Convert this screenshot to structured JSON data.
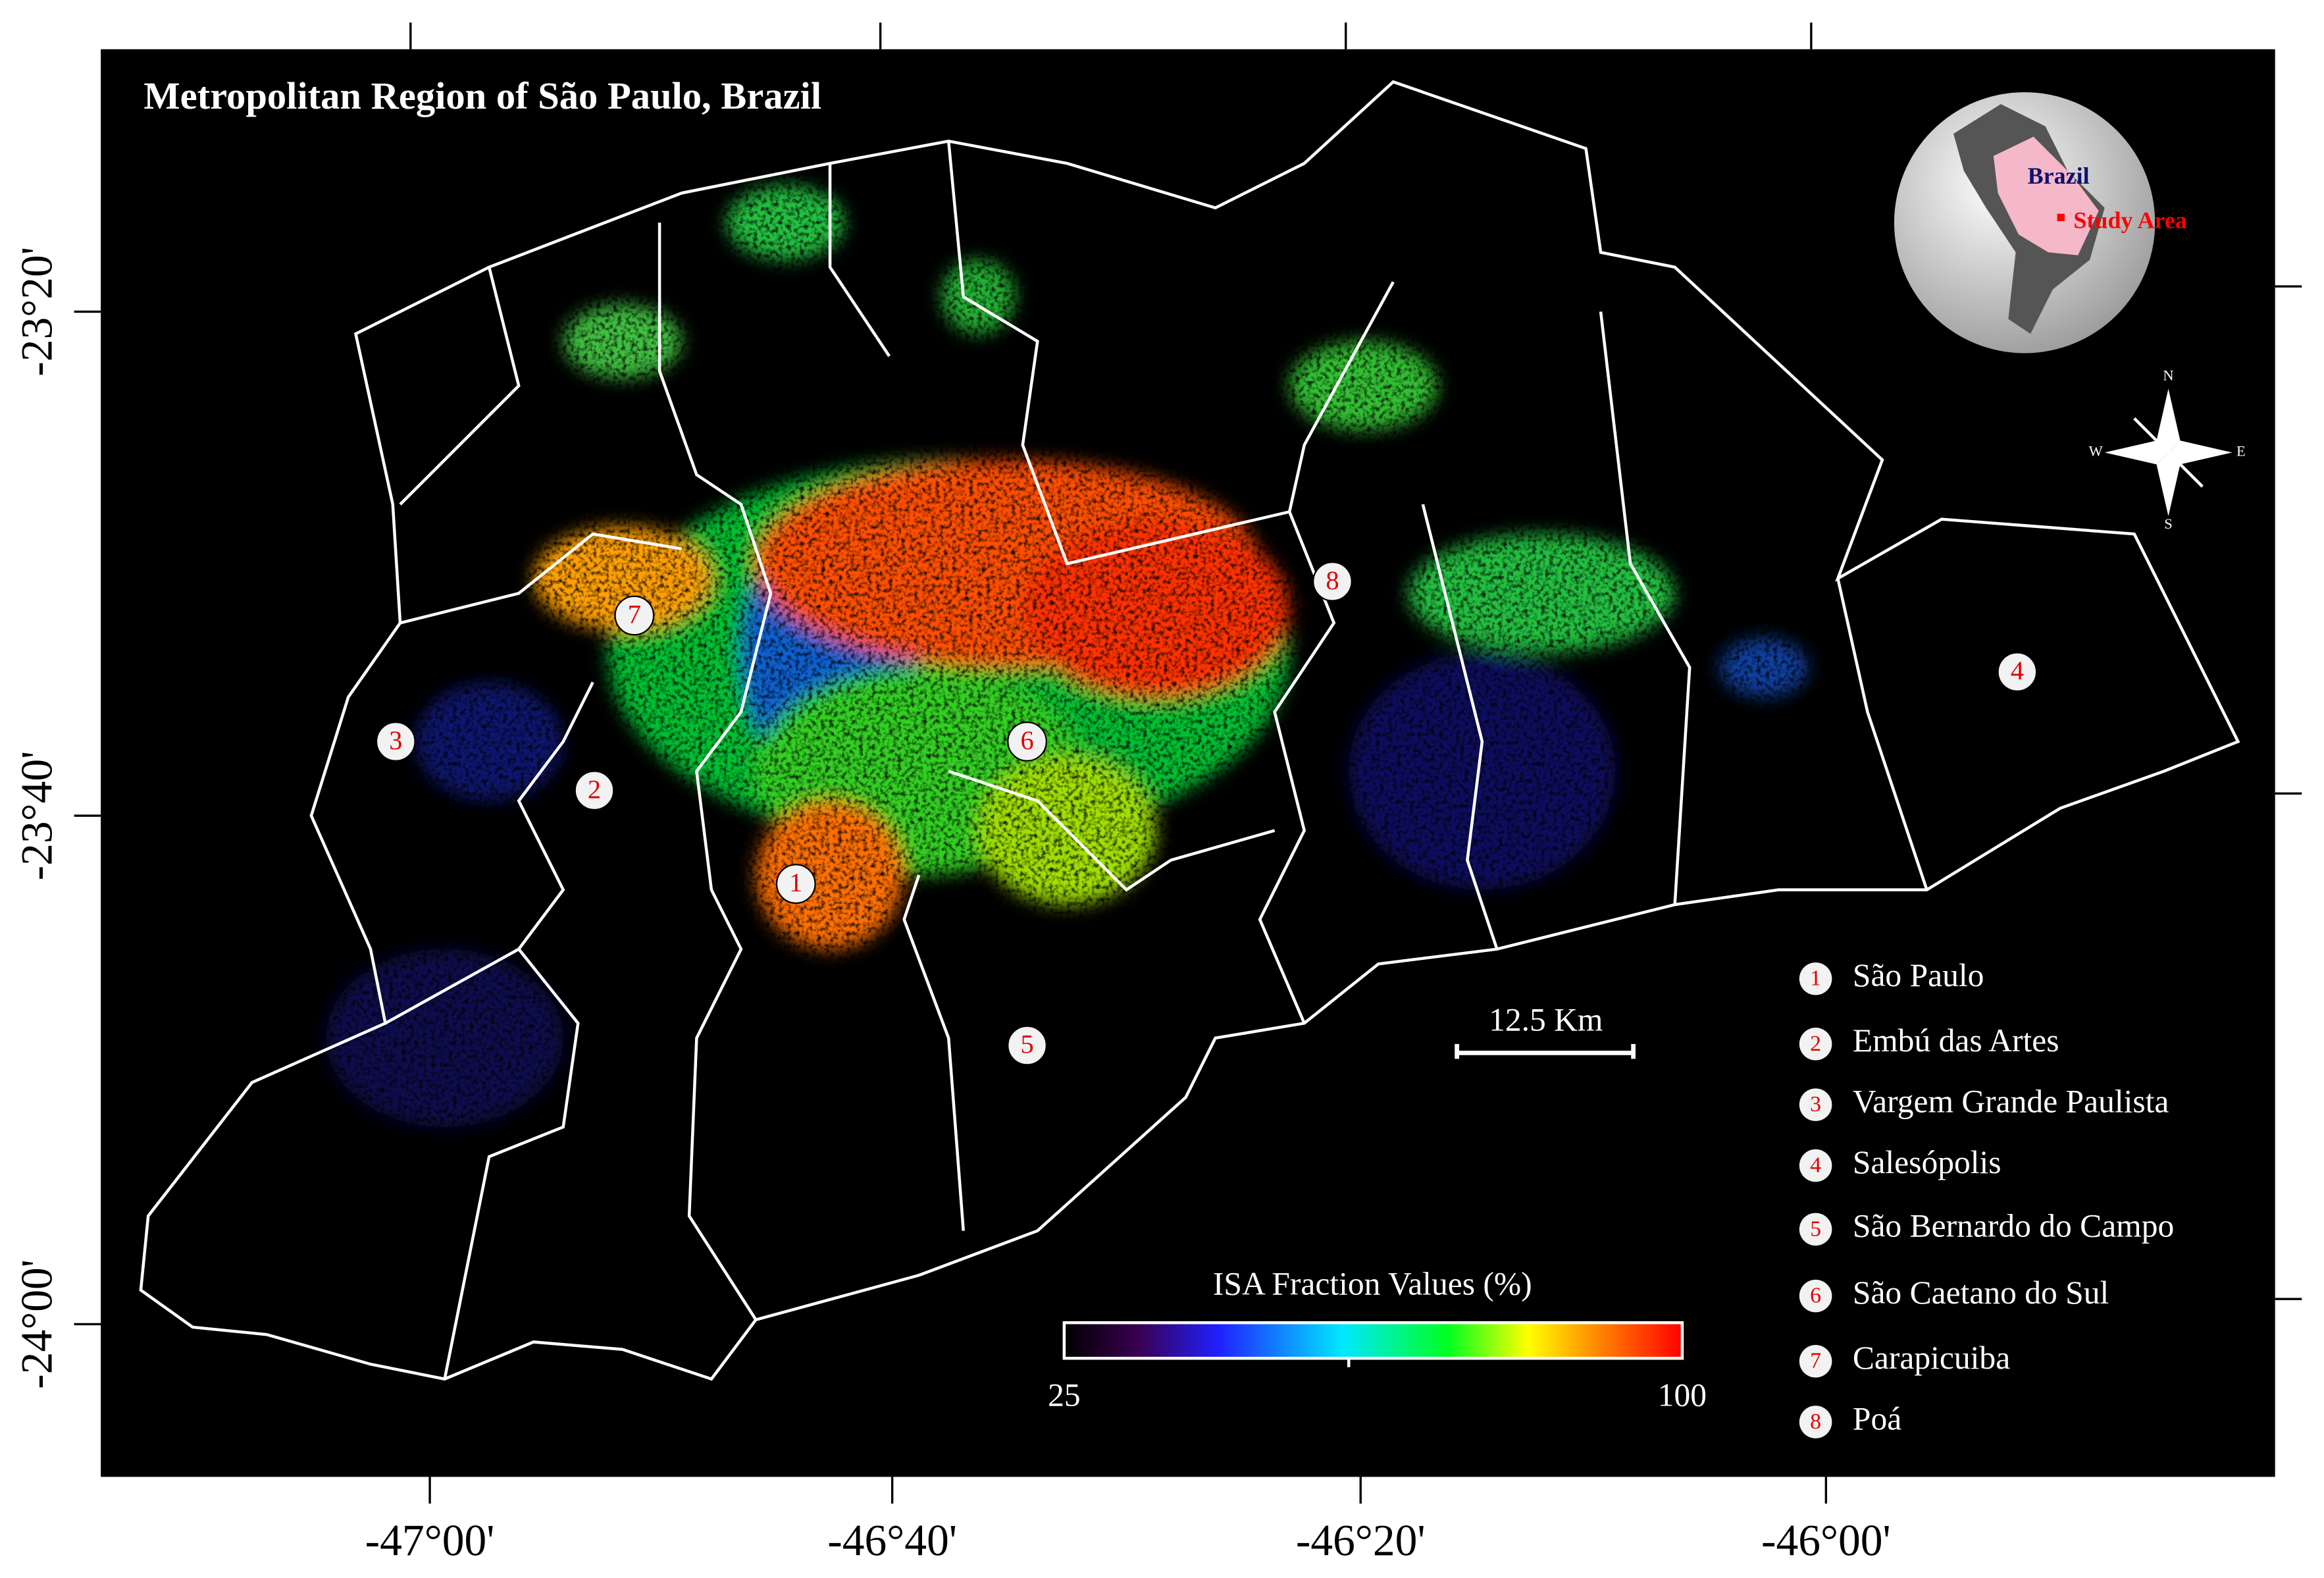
{
  "title": "Metropolitan Region of São Paulo, Brazil",
  "longitude_labels": [
    "-47°00'",
    "-46°40'",
    "-46°20'",
    "-46°00'"
  ],
  "latitude_labels": [
    "-23°20'",
    "-23°40'",
    "-24°00'"
  ],
  "inset": {
    "country": "Brazil",
    "study_area": "Study Area"
  },
  "compass": {
    "north": "N",
    "south": "S",
    "east": "E",
    "west": "W"
  },
  "scale_bar": "12.5 Km",
  "colorbar": {
    "title": "ISA Fraction Values (%)",
    "min": 25,
    "max": 100
  },
  "municipalities": [
    {
      "id": "1",
      "name": "São Paulo"
    },
    {
      "id": "2",
      "name": "Embú das Artes"
    },
    {
      "id": "3",
      "name": "Vargem Grande Paulista"
    },
    {
      "id": "4",
      "name": "Salesópolis"
    },
    {
      "id": "5",
      "name": "São Bernardo do Campo"
    },
    {
      "id": "6",
      "name": "São Caetano do Sul"
    },
    {
      "id": "7",
      "name": "Carapicuiba"
    },
    {
      "id": "8",
      "name": "Poá"
    }
  ]
}
